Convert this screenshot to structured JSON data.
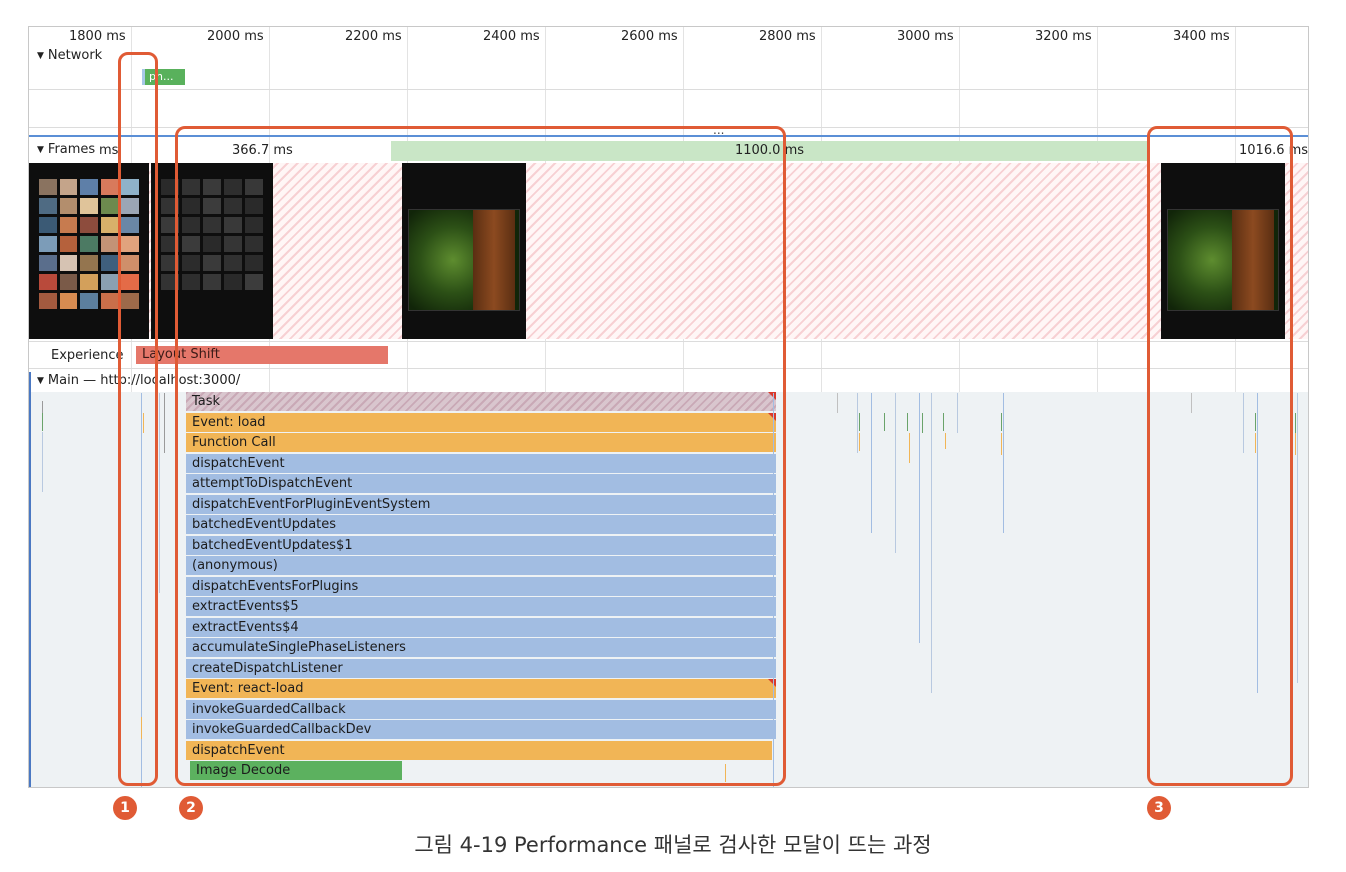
{
  "timeline": {
    "ticks": [
      "1800 ms",
      "2000 ms",
      "2200 ms",
      "2400 ms",
      "2600 ms",
      "2800 ms",
      "3000 ms",
      "3200 ms",
      "3400 ms"
    ]
  },
  "tracks": {
    "network": {
      "label": "Network",
      "chip": "ph..."
    },
    "frames": {
      "label": "Frames",
      "bars": [
        "ms",
        "366.7 ms",
        "1100.0 ms",
        "1016.6 ms"
      ],
      "divider": "..."
    },
    "experience": {
      "label": "Experience",
      "bar": "Layout Shift"
    },
    "main": {
      "label": "Main — http://localhost:3000/",
      "entries": [
        {
          "label": "Task",
          "kind": "task"
        },
        {
          "label": "Event: load",
          "kind": "orange"
        },
        {
          "label": "Function Call",
          "kind": "orange"
        },
        {
          "label": "dispatchEvent",
          "kind": "blue"
        },
        {
          "label": "attemptToDispatchEvent",
          "kind": "blue"
        },
        {
          "label": "dispatchEventForPluginEventSystem",
          "kind": "blue"
        },
        {
          "label": "batchedEventUpdates",
          "kind": "blue"
        },
        {
          "label": "batchedEventUpdates$1",
          "kind": "blue"
        },
        {
          "label": "(anonymous)",
          "kind": "blue"
        },
        {
          "label": "dispatchEventsForPlugins",
          "kind": "blue"
        },
        {
          "label": "extractEvents$5",
          "kind": "blue"
        },
        {
          "label": "extractEvents$4",
          "kind": "blue"
        },
        {
          "label": "accumulateSinglePhaseListeners",
          "kind": "blue"
        },
        {
          "label": "createDispatchListener",
          "kind": "blue"
        },
        {
          "label": "Event: react-load",
          "kind": "orange"
        },
        {
          "label": "invokeGuardedCallback",
          "kind": "blue"
        },
        {
          "label": "invokeGuardedCallbackDev",
          "kind": "blue"
        },
        {
          "label": "dispatchEvent",
          "kind": "orange"
        },
        {
          "label": "Image Decode",
          "kind": "green"
        }
      ]
    }
  },
  "markers": [
    "1",
    "2",
    "3"
  ],
  "colors": {
    "highlight": "#e05b35",
    "blue_bar": "#a2bde2",
    "orange_bar": "#f1b556",
    "green_bar": "#5cb15f",
    "layout_shift": "#e5776a",
    "frame_bar": "#c9e6c6"
  },
  "caption": "그림 4-19 Performance 패널로 검사한 모달이 뜨는 과정"
}
